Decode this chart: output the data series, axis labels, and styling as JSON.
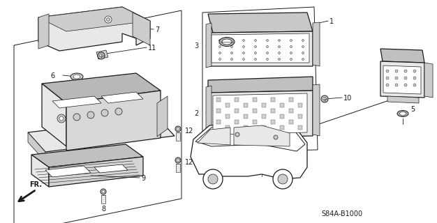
{
  "bg_color": "#ffffff",
  "line_color": "#1a1a1a",
  "fig_width": 6.26,
  "fig_height": 3.2,
  "dpi": 100,
  "diagram_code": "S84A-B1000",
  "fr_label": "FR."
}
